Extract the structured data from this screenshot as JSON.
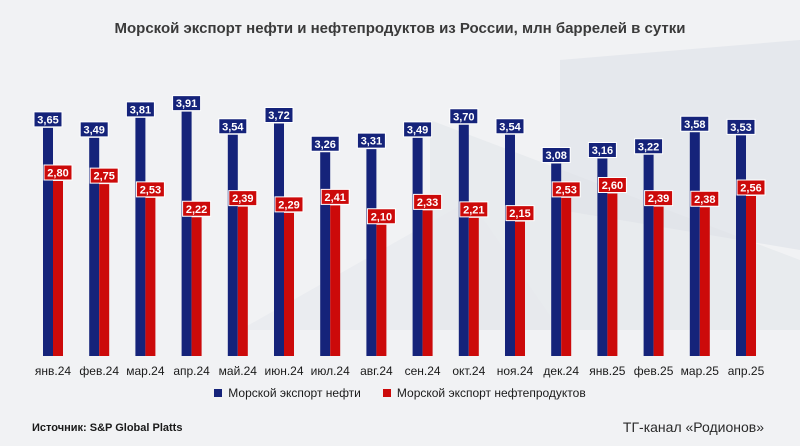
{
  "title": "Морской экспорт нефти и нефтепродуктов из России, млн баррелей в сутки",
  "source": "Источник: S&P Global Platts",
  "channel": "ТГ-канал «Родионов»",
  "colors": {
    "oil": "#15237a",
    "products": "#cc0a0a",
    "background": "#f1f2f4"
  },
  "chart_data": {
    "type": "bar",
    "title": "Морской экспорт нефти и нефтепродуктов из России, млн баррелей в сутки",
    "categories": [
      "янв.24",
      "фев.24",
      "мар.24",
      "апр.24",
      "май.24",
      "июн.24",
      "июл.24",
      "авг.24",
      "сен.24",
      "окт.24",
      "ноя.24",
      "дек.24",
      "янв.25",
      "фев.25",
      "мар.25",
      "апр.25"
    ],
    "series": [
      {
        "name": "Морской экспорт нефти",
        "values": [
          3.65,
          3.49,
          3.81,
          3.91,
          3.54,
          3.72,
          3.26,
          3.31,
          3.49,
          3.7,
          3.54,
          3.08,
          3.16,
          3.22,
          3.58,
          3.53
        ]
      },
      {
        "name": "Морской экспорт нефтепродуктов",
        "values": [
          2.8,
          2.75,
          2.53,
          2.22,
          2.39,
          2.29,
          2.41,
          2.1,
          2.33,
          2.21,
          2.15,
          2.53,
          2.6,
          2.39,
          2.38,
          2.56
        ]
      }
    ],
    "ylim": [
      0,
      4.8
    ],
    "legend_position": "bottom",
    "grid": false
  }
}
